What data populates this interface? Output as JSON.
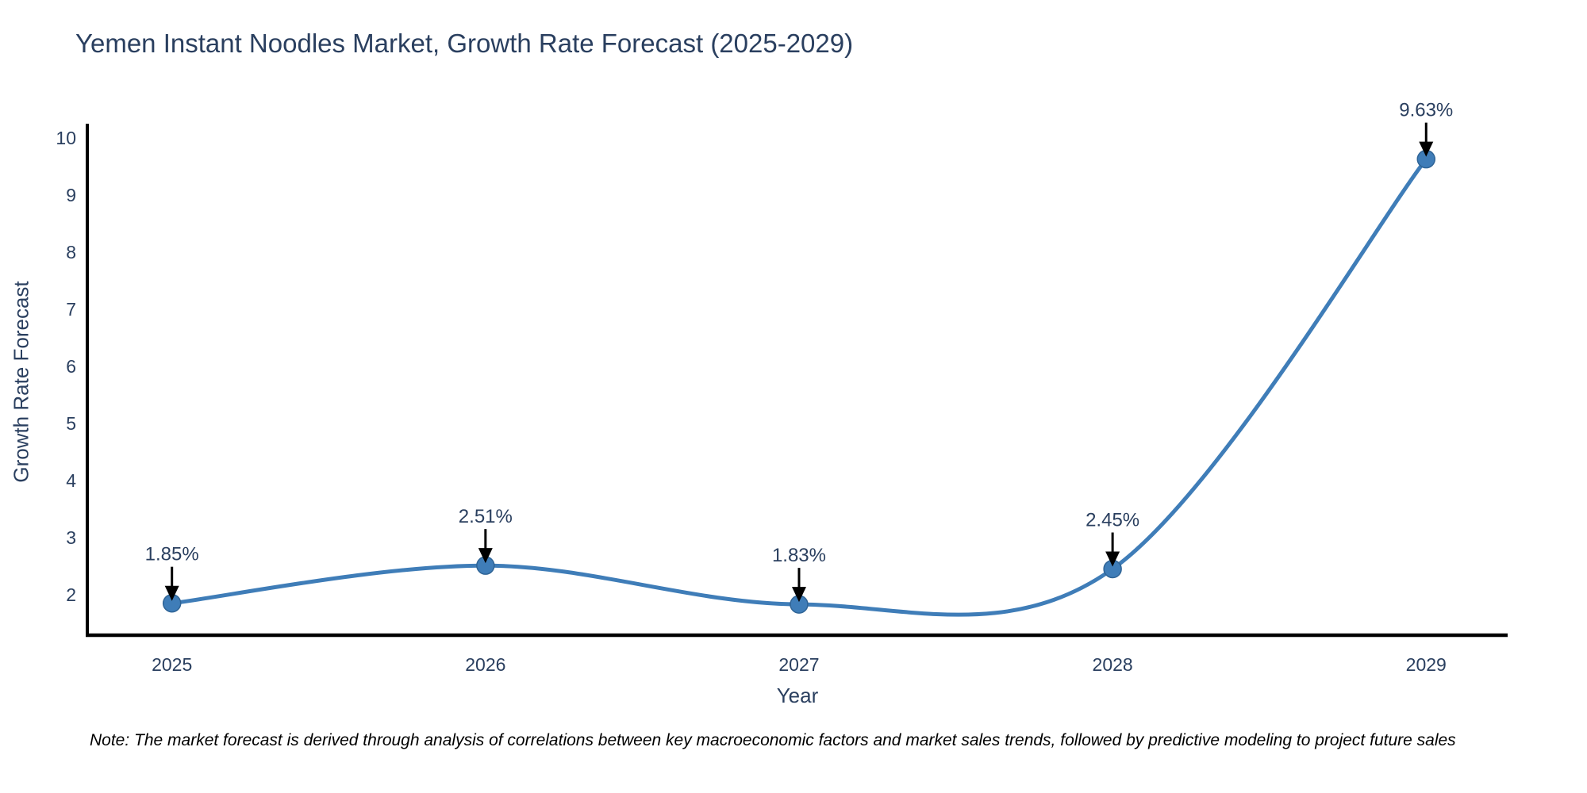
{
  "title": "Yemen Instant Noodles Market, Growth Rate Forecast (2025-2029)",
  "note": "Note: The market forecast is derived through analysis of correlations between key macroeconomic factors and market sales trends, followed by predictive modeling to project future sales",
  "colors": {
    "line": "#3f7db8",
    "marker": "#3f7db8",
    "marker_edge": "#2f6496",
    "axis_line": "#000000",
    "text": "#2a3f5f",
    "annotation_text": "#2a3f5f",
    "annotation_arrow": "#000000",
    "background": "#ffffff"
  },
  "chart_data": {
    "type": "line",
    "line_shape": "spline",
    "title": "Yemen Instant Noodles Market, Growth Rate Forecast (2025-2029)",
    "xlabel": "Year",
    "ylabel": "Growth Rate Forecast",
    "x": [
      2025,
      2026,
      2027,
      2028,
      2029
    ],
    "values": [
      1.85,
      2.51,
      1.83,
      2.45,
      9.63
    ],
    "annotations": [
      "1.85%",
      "2.51%",
      "1.83%",
      "2.45%",
      "9.63%"
    ],
    "yticks": [
      2,
      3,
      4,
      5,
      6,
      7,
      8,
      9,
      10
    ],
    "xticks": [
      2025,
      2026,
      2027,
      2028,
      2029
    ],
    "ylim": [
      1.29,
      10.25
    ],
    "xlim": [
      2024.73,
      2029.26
    ],
    "grid": false,
    "legend": false,
    "markers": true
  }
}
